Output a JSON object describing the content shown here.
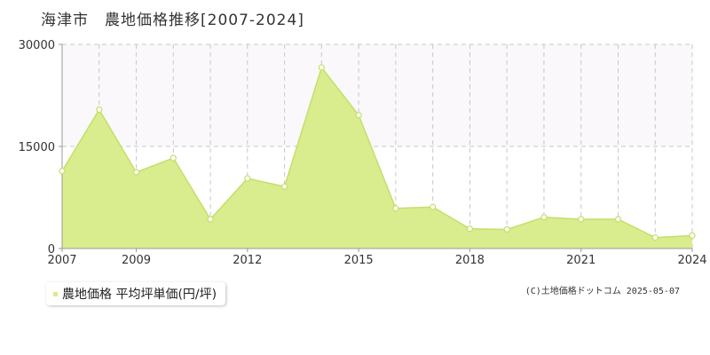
{
  "title": "海津市　農地価格推移[2007-2024]",
  "legend": {
    "label": "農地価格 平均坪単価(円/坪)"
  },
  "credit": "(C)土地価格ドットコム 2025-05-07",
  "colors": {
    "fill": "#d9ec8e",
    "line": "#c3e06a",
    "upper_band": "#faf8fa",
    "grid": "#c8c8c8",
    "axis": "#999999"
  },
  "chart_data": {
    "type": "area",
    "x": [
      2007,
      2008,
      2009,
      2010,
      2011,
      2012,
      2013,
      2014,
      2015,
      2016,
      2017,
      2018,
      2019,
      2020,
      2021,
      2022,
      2023,
      2024
    ],
    "values": [
      11400,
      20400,
      11200,
      13300,
      4300,
      10300,
      9100,
      26600,
      19600,
      5900,
      6100,
      2900,
      2800,
      4600,
      4300,
      4300,
      1600,
      1900
    ],
    "xticks": [
      "2007",
      "2009",
      "2012",
      "2015",
      "2018",
      "2021",
      "2024"
    ],
    "yticks": [
      "0",
      "15000",
      "30000"
    ],
    "ylim": [
      0,
      30000
    ],
    "xlim": [
      2007,
      2024
    ],
    "grid": true,
    "legend_position": "bottom-left"
  }
}
